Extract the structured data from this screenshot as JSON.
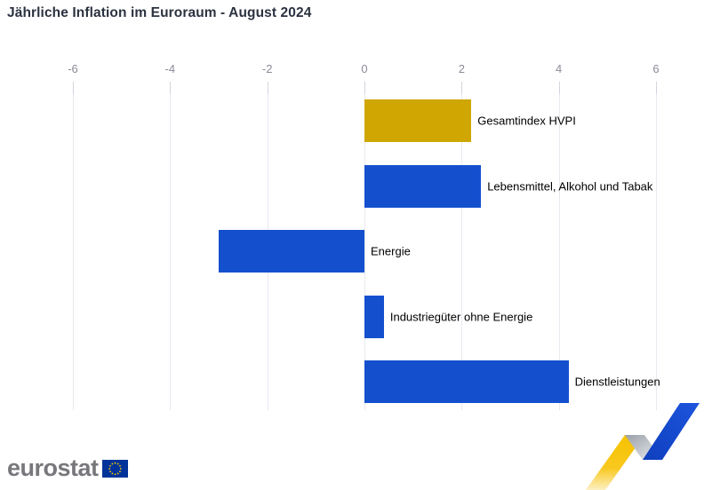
{
  "title": "Jährliche Inflation im Euroraum - August 2024",
  "chart_data": {
    "type": "bar",
    "orientation": "horizontal",
    "title": "Jährliche Inflation im Euroraum - August 2024",
    "categories": [
      "Gesamtindex HVPI",
      "Lebensmittel, Alkohol und Tabak",
      "Energie",
      "Industriegüter ohne Energie",
      "Dienstleistungen"
    ],
    "values": [
      2.2,
      2.4,
      -3.0,
      0.4,
      4.2
    ],
    "bar_colors": [
      "#cfa602",
      "#1450ce",
      "#1450ce",
      "#1450ce",
      "#1450ce"
    ],
    "xlabel": "",
    "ylabel": "",
    "xlim": [
      -6,
      6
    ],
    "x_ticks": [
      -6,
      -4,
      -2,
      0,
      2,
      4,
      6
    ],
    "grid": true,
    "legend": false,
    "value_labels": "category names shown right of each bar"
  },
  "colors": {
    "accent_gold": "#cfa602",
    "accent_blue": "#1450ce",
    "title_text": "#2b3240",
    "axis_text": "#8c8c99",
    "gridline": "#e8e8f0",
    "logo_gray": "#77777c",
    "eu_flag_blue": "#003399",
    "eu_star_yellow": "#ffcc00"
  },
  "footer": {
    "logo_text": "eurostat"
  }
}
